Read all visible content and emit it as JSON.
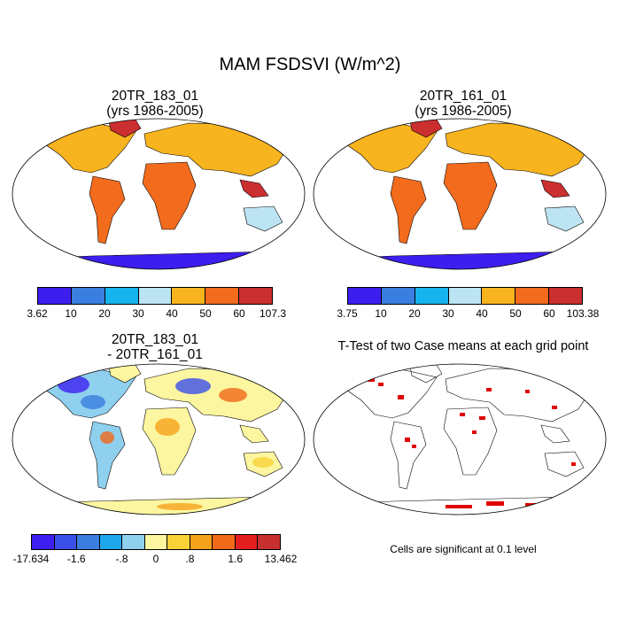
{
  "figure": {
    "title": "MAM FSDSVI (W/m^2)"
  },
  "panels": {
    "top_left": {
      "title_line1": "20TR_183_01",
      "title_line2": "(yrs 1986-2005)"
    },
    "top_right": {
      "title_line1": "20TR_161_01",
      "title_line2": "(yrs 1986-2005)"
    },
    "bottom_left": {
      "title_line1": "20TR_183_01",
      "title_line2": "- 20TR_161_01"
    },
    "bottom_right": {
      "title_line1": "T-Test of two Case means at each grid point",
      "note": "Cells are significant at 0.1 level"
    }
  },
  "colorbars": {
    "top_left": {
      "tick_labels": [
        "3.62",
        "10",
        "20",
        "30",
        "40",
        "50",
        "60",
        "107.3"
      ],
      "colors": [
        "#3c1fef",
        "#3a7ee0",
        "#16b4ee",
        "#bde4f2",
        "#f8b41e",
        "#f36b1c",
        "#cc2f2f"
      ]
    },
    "top_right": {
      "tick_labels": [
        "3.75",
        "10",
        "20",
        "30",
        "40",
        "50",
        "60",
        "103.38"
      ],
      "colors": [
        "#3c1fef",
        "#3a7ee0",
        "#16b4ee",
        "#bde4f2",
        "#f8b41e",
        "#f36b1c",
        "#cc2f2f"
      ]
    },
    "bottom_left": {
      "tick_labels": [
        "-17.634",
        "-1.6",
        "-.8",
        "0",
        ".8",
        "1.6",
        "13.462"
      ],
      "colors": [
        "#3d1ff0",
        "#3a4fe8",
        "#3a7ee0",
        "#1fa7ec",
        "#8fd0ef",
        "#fdf6a0",
        "#f8d238",
        "#f5a21c",
        "#f06a1a",
        "#e31e1e",
        "#c82f2f"
      ]
    }
  },
  "chart_data": {
    "type": "map",
    "title": "MAM FSDSVI (W/m^2)",
    "variable": "FSDSVI",
    "units": "W/m^2",
    "season": "MAM",
    "panels": [
      {
        "case": "20TR_183_01",
        "years": "1986-2005",
        "levels": [
          10,
          20,
          30,
          40,
          50,
          60
        ],
        "min": 3.62,
        "max": 107.3
      },
      {
        "case": "20TR_161_01",
        "years": "1986-2005",
        "levels": [
          10,
          20,
          30,
          40,
          50,
          60
        ],
        "min": 3.75,
        "max": 103.38
      },
      {
        "case": "20TR_183_01 - 20TR_161_01",
        "tick_values": [
          -1.6,
          -0.8,
          0,
          0.8,
          1.6
        ],
        "min": -17.634,
        "max": 13.462
      },
      {
        "case": "T-Test of two Case means at each grid point",
        "significance_level": 0.1
      }
    ]
  }
}
